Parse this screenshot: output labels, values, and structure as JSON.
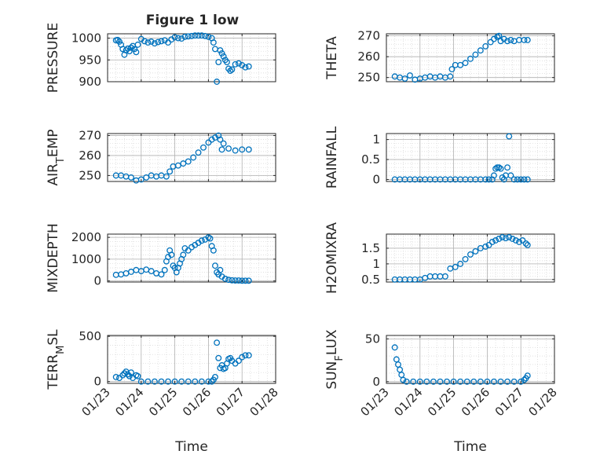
{
  "figure_title": "Figure 1 low",
  "x_ticks": [
    "01/23",
    "01/24",
    "01/25",
    "01/26",
    "01/27",
    "01/28"
  ],
  "colors": {
    "marker": "#0072BD",
    "axis": "#262626",
    "grid": "#b0b0b0",
    "background": "#ffffff"
  },
  "chart_data": [
    {
      "type": "scatter",
      "title": "Figure 1 low",
      "ylabel": "PRESSURE",
      "xlabel": "",
      "xlim": [
        23,
        28
      ],
      "ylim": [
        900,
        1010
      ],
      "yticks": [
        900,
        950,
        1000
      ],
      "x": [
        23.25,
        23.3,
        23.35,
        23.4,
        23.45,
        23.5,
        23.55,
        23.6,
        23.65,
        23.7,
        23.75,
        23.8,
        23.85,
        23.9,
        24.0,
        24.1,
        24.2,
        24.3,
        24.4,
        24.5,
        24.6,
        24.7,
        24.8,
        24.9,
        25.0,
        25.1,
        25.2,
        25.3,
        25.4,
        25.5,
        25.6,
        25.7,
        25.8,
        25.9,
        26.0,
        26.1,
        26.15,
        26.2,
        26.25,
        26.3,
        26.35,
        26.4,
        26.45,
        26.5,
        26.55,
        26.6,
        26.65,
        26.7,
        26.8,
        26.9,
        27.0,
        27.1,
        27.2
      ],
      "y": [
        995,
        996,
        992,
        985,
        975,
        962,
        972,
        976,
        970,
        978,
        982,
        975,
        968,
        985,
        998,
        993,
        990,
        992,
        988,
        991,
        993,
        995,
        990,
        997,
        1002,
        1000,
        999,
        1003,
        1004,
        1005,
        1006,
        1006,
        1006,
        1005,
        1003,
        1000,
        990,
        975,
        900,
        945,
        972,
        965,
        958,
        950,
        945,
        930,
        925,
        928,
        940,
        942,
        938,
        933,
        935
      ]
    },
    {
      "type": "scatter",
      "title": "",
      "ylabel": "THETA",
      "xlabel": "",
      "xlim": [
        23,
        28
      ],
      "ylim": [
        248,
        271
      ],
      "yticks": [
        250,
        260,
        270
      ],
      "x": [
        23.25,
        23.4,
        23.55,
        23.7,
        23.85,
        24.0,
        24.15,
        24.3,
        24.45,
        24.6,
        24.75,
        24.9,
        24.95,
        25.05,
        25.2,
        25.35,
        25.5,
        25.65,
        25.8,
        25.95,
        26.1,
        26.2,
        26.3,
        26.35,
        26.4,
        26.5,
        26.6,
        26.7,
        26.8,
        26.95,
        27.1,
        27.2
      ],
      "y": [
        250.5,
        250,
        249.5,
        251,
        249,
        249.5,
        250,
        250.5,
        250,
        250.5,
        250,
        250.5,
        254,
        256,
        256,
        257,
        259,
        261,
        263,
        265,
        267,
        268.5,
        269.5,
        270,
        267.5,
        268.5,
        267.5,
        268,
        267.5,
        268,
        268,
        268
      ]
    },
    {
      "type": "scatter",
      "title": "",
      "ylabel": "AIR_TEMP",
      "xlabel": "",
      "xlim": [
        23,
        28
      ],
      "ylim": [
        247,
        271
      ],
      "yticks": [
        250,
        260,
        270
      ],
      "x": [
        23.25,
        23.4,
        23.55,
        23.7,
        23.85,
        24.0,
        24.15,
        24.3,
        24.45,
        24.6,
        24.75,
        24.85,
        24.95,
        25.1,
        25.25,
        25.4,
        25.55,
        25.7,
        25.85,
        26.0,
        26.1,
        26.2,
        26.3,
        26.35,
        26.4,
        26.45,
        26.6,
        26.8,
        27.0,
        27.2
      ],
      "y": [
        250,
        250,
        249.5,
        249,
        247.5,
        248,
        249,
        250,
        249.5,
        250,
        249.5,
        252,
        254.5,
        255,
        256,
        257,
        259,
        261.5,
        264,
        266.5,
        268,
        269,
        270,
        268,
        263,
        266,
        263.5,
        262.5,
        263,
        263
      ]
    },
    {
      "type": "scatter",
      "title": "",
      "ylabel": "RAINFALL",
      "xlabel": "",
      "xlim": [
        23,
        28
      ],
      "ylim": [
        -0.05,
        1.15
      ],
      "yticks": [
        0,
        0.5,
        1
      ],
      "x": [
        23.25,
        23.4,
        23.55,
        23.7,
        23.85,
        24.0,
        24.15,
        24.3,
        24.45,
        24.6,
        24.75,
        24.9,
        25.05,
        25.2,
        25.35,
        25.5,
        25.65,
        25.8,
        25.95,
        26.05,
        26.15,
        26.2,
        26.25,
        26.3,
        26.35,
        26.4,
        26.45,
        26.5,
        26.55,
        26.6,
        26.65,
        26.7,
        26.8,
        26.9,
        27.0,
        27.1,
        27.2
      ],
      "y": [
        0,
        0,
        0,
        0,
        0,
        0,
        0,
        0,
        0,
        0,
        0,
        0,
        0,
        0,
        0,
        0,
        0,
        0,
        0,
        0,
        0,
        0.1,
        0.27,
        0.3,
        0.3,
        0.27,
        0.05,
        0,
        0.1,
        0.3,
        1.08,
        0.1,
        0,
        0,
        0,
        0,
        0
      ]
    },
    {
      "type": "scatter",
      "title": "",
      "ylabel": "MIXDEPTH",
      "xlabel": "",
      "xlim": [
        23,
        28
      ],
      "ylim": [
        -50,
        2150
      ],
      "yticks": [
        0,
        1000,
        2000
      ],
      "x": [
        23.25,
        23.4,
        23.55,
        23.7,
        23.85,
        24.0,
        24.15,
        24.3,
        24.45,
        24.6,
        24.7,
        24.75,
        24.8,
        24.85,
        24.9,
        24.95,
        25.0,
        25.05,
        25.1,
        25.15,
        25.2,
        25.25,
        25.3,
        25.4,
        25.5,
        25.6,
        25.7,
        25.8,
        25.9,
        26.0,
        26.05,
        26.1,
        26.15,
        26.2,
        26.25,
        26.3,
        26.35,
        26.4,
        26.5,
        26.6,
        26.7,
        26.8,
        26.9,
        27.0,
        27.1,
        27.2
      ],
      "y": [
        280,
        300,
        350,
        420,
        500,
        450,
        520,
        450,
        350,
        300,
        500,
        900,
        1100,
        1400,
        1200,
        700,
        600,
        400,
        600,
        800,
        1000,
        1200,
        1500,
        1400,
        1550,
        1650,
        1750,
        1850,
        1900,
        2000,
        1950,
        1600,
        1400,
        700,
        400,
        300,
        500,
        200,
        100,
        50,
        30,
        20,
        20,
        10,
        10,
        10
      ]
    },
    {
      "type": "scatter",
      "title": "",
      "ylabel": "H2OMIXRA",
      "xlabel": "",
      "xlim": [
        23,
        28
      ],
      "ylim": [
        0.42,
        1.95
      ],
      "yticks": [
        0.5,
        1,
        1.5
      ],
      "x": [
        23.25,
        23.4,
        23.55,
        23.7,
        23.85,
        24.0,
        24.15,
        24.3,
        24.45,
        24.6,
        24.75,
        24.9,
        25.05,
        25.2,
        25.35,
        25.5,
        25.65,
        25.8,
        25.95,
        26.05,
        26.15,
        26.25,
        26.35,
        26.45,
        26.55,
        26.65,
        26.75,
        26.85,
        26.95,
        27.05,
        27.15,
        27.2
      ],
      "y": [
        0.5,
        0.5,
        0.5,
        0.5,
        0.5,
        0.5,
        0.55,
        0.6,
        0.6,
        0.6,
        0.6,
        0.85,
        0.9,
        1.0,
        1.15,
        1.3,
        1.4,
        1.5,
        1.55,
        1.6,
        1.7,
        1.75,
        1.8,
        1.85,
        1.82,
        1.85,
        1.8,
        1.75,
        1.7,
        1.75,
        1.65,
        1.6
      ]
    },
    {
      "type": "scatter",
      "title": "",
      "ylabel": "TERR_MSL",
      "xlabel": "Time",
      "xlim": [
        23,
        28
      ],
      "ylim": [
        -20,
        510
      ],
      "yticks": [
        0,
        500
      ],
      "x": [
        23.25,
        23.35,
        23.45,
        23.5,
        23.55,
        23.6,
        23.65,
        23.7,
        23.75,
        23.85,
        23.9,
        24.0,
        24.2,
        24.4,
        24.6,
        24.8,
        25.0,
        25.2,
        25.4,
        25.6,
        25.8,
        26.0,
        26.1,
        26.15,
        26.2,
        26.25,
        26.3,
        26.35,
        26.4,
        26.45,
        26.5,
        26.55,
        26.6,
        26.65,
        26.7,
        26.8,
        26.9,
        27.0,
        27.1,
        27.2
      ],
      "y": [
        50,
        40,
        70,
        90,
        110,
        80,
        60,
        100,
        40,
        70,
        60,
        0,
        0,
        0,
        0,
        0,
        0,
        0,
        0,
        0,
        0,
        0,
        0,
        20,
        50,
        430,
        260,
        150,
        180,
        140,
        150,
        200,
        250,
        260,
        230,
        200,
        230,
        270,
        290,
        290
      ]
    },
    {
      "type": "scatter",
      "title": "",
      "ylabel": "SUN_FLUX",
      "xlabel": "Time",
      "xlim": [
        23,
        28
      ],
      "ylim": [
        -2,
        54
      ],
      "yticks": [
        0,
        50
      ],
      "x": [
        23.25,
        23.3,
        23.35,
        23.4,
        23.45,
        23.5,
        23.6,
        23.8,
        24.0,
        24.2,
        24.4,
        24.6,
        24.8,
        25.0,
        25.2,
        25.4,
        25.6,
        25.8,
        26.0,
        26.2,
        26.4,
        26.6,
        26.8,
        27.0,
        27.1,
        27.15,
        27.2
      ],
      "y": [
        40,
        26,
        20,
        14,
        8,
        2,
        0,
        0,
        0,
        0,
        0,
        0,
        0,
        0,
        0,
        0,
        0,
        0,
        0,
        0,
        0,
        0,
        0,
        0,
        2,
        4,
        7
      ]
    }
  ]
}
